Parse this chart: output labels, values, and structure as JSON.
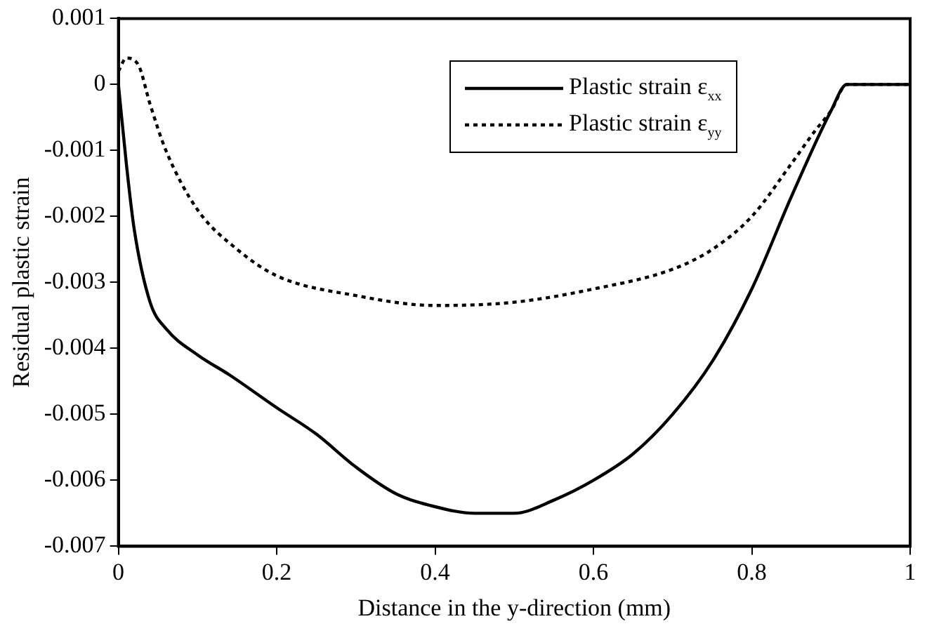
{
  "chart_data": {
    "type": "line",
    "xlabel": "Distance in the y-direction (mm)",
    "ylabel": "Residual plastic strain",
    "xlim": [
      0,
      1
    ],
    "xticks": [
      0,
      0.2,
      0.4,
      0.6,
      0.8,
      1
    ],
    "ylim": [
      -0.007,
      0.001
    ],
    "yticks": [
      0.001,
      0,
      -0.001,
      -0.002,
      -0.003,
      -0.004,
      -0.005,
      -0.006,
      -0.007
    ],
    "grid": false,
    "legend": "top",
    "marker": "none",
    "series": [
      {
        "name": "Plastic strain ε$_{xx}$",
        "color": "#000000",
        "line_style": "solid",
        "x": [
          0,
          0.01,
          0.02,
          0.04,
          0.06,
          0.1,
          0.14,
          0.2,
          0.25,
          0.3,
          0.35,
          0.4,
          0.45,
          0.5,
          0.55,
          0.6,
          0.65,
          0.7,
          0.75,
          0.8,
          0.85,
          0.9,
          0.92,
          1
        ],
        "values": [
          0,
          -0.0012,
          -0.0022,
          -0.0033,
          -0.0037,
          -0.0041,
          -0.0044,
          -0.0049,
          -0.0053,
          -0.0058,
          -0.0062,
          -0.0064,
          -0.0065,
          -0.0065,
          -0.0063,
          -0.006,
          -0.0056,
          -0.005,
          -0.0042,
          -0.0031,
          -0.0017,
          -0.0004,
          0,
          0
        ]
      },
      {
        "name": "Plastic strain ε$_{yy}$",
        "color": "#000000",
        "line_style": "dotted",
        "x": [
          0,
          0.01,
          0.025,
          0.04,
          0.06,
          0.1,
          0.15,
          0.2,
          0.3,
          0.4,
          0.5,
          0.6,
          0.7,
          0.75,
          0.8,
          0.85,
          0.88,
          0.9,
          0.92,
          1
        ],
        "values": [
          0.0002,
          0.0004,
          0.0003,
          -0.0003,
          -0.001,
          -0.0019,
          -0.0025,
          -0.0029,
          -0.0032,
          -0.00335,
          -0.0033,
          -0.0031,
          -0.0028,
          -0.0025,
          -0.002,
          -0.0012,
          -0.0007,
          -0.0004,
          0,
          0
        ]
      }
    ]
  }
}
